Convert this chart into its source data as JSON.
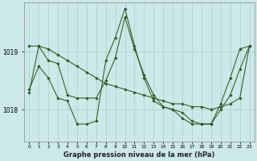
{
  "xlabel": "Graphe pression niveau de la mer (hPa)",
  "background_color": "#cce8e8",
  "grid_color": "#aad0d0",
  "line_color": "#2d5a1b",
  "xlim_min": -0.5,
  "xlim_max": 23.5,
  "ylim_min": 1017.45,
  "ylim_max": 1019.85,
  "yticks": [
    1018,
    1019
  ],
  "xticks": [
    0,
    1,
    2,
    3,
    4,
    5,
    6,
    7,
    8,
    9,
    10,
    11,
    12,
    13,
    14,
    15,
    16,
    17,
    18,
    19,
    20,
    21,
    22,
    23
  ],
  "series_straight": [
    1019.1,
    1019.1,
    1019.05,
    1018.95,
    1018.85,
    1018.75,
    1018.65,
    1018.55,
    1018.45,
    1018.4,
    1018.35,
    1018.3,
    1018.25,
    1018.2,
    1018.15,
    1018.1,
    1018.1,
    1018.05,
    1018.05,
    1018.0,
    1018.05,
    1018.1,
    1018.2,
    1019.1
  ],
  "series_jagged": [
    1018.35,
    1018.75,
    1018.55,
    1018.2,
    1018.15,
    1017.75,
    1017.75,
    1017.8,
    1018.85,
    1019.25,
    1019.75,
    1019.1,
    1018.55,
    1018.15,
    1018.05,
    1018.0,
    1017.95,
    1017.8,
    1017.75,
    1017.75,
    1018.1,
    1018.55,
    1019.05,
    1019.1
  ],
  "series_flat": [
    1018.3,
    1019.1,
    1018.85,
    1018.8,
    1018.25,
    1018.2,
    1018.2,
    1018.2,
    1018.5,
    1018.9,
    1019.6,
    1019.05,
    1018.6,
    1018.25,
    1018.05,
    1018.0,
    1017.85,
    1017.75,
    1017.75,
    1017.75,
    1018.0,
    1018.25,
    1018.7,
    1019.1
  ]
}
